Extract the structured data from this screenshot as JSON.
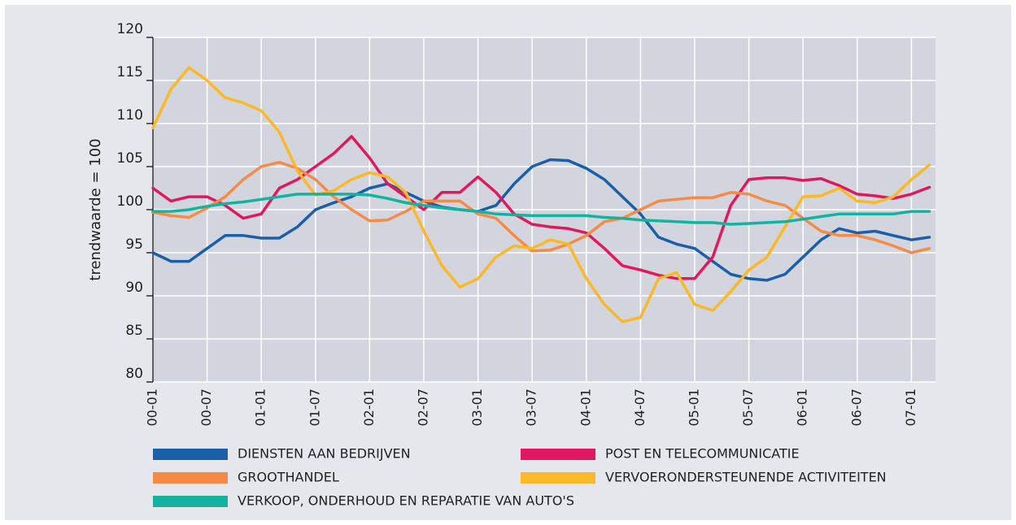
{
  "chart_data": {
    "type": "line",
    "ylabel": "trendwaarde = 100",
    "categories": [
      "00-01",
      null,
      null,
      "00-07",
      null,
      null,
      "01-01",
      null,
      null,
      "01-07",
      null,
      null,
      "02-01",
      null,
      null,
      "02-07",
      null,
      null,
      "03-01",
      null,
      null,
      "03-07",
      null,
      null,
      "04-01",
      null,
      null,
      "04-07",
      null,
      null,
      "05-01",
      null,
      null,
      "05-07",
      null,
      null,
      "06-01",
      null,
      null,
      "06-07",
      null,
      null,
      "07-01",
      null
    ],
    "ylim": [
      80,
      120
    ],
    "yticks": [
      80,
      85,
      90,
      95,
      100,
      105,
      110,
      115,
      120
    ],
    "grid": true,
    "series": [
      {
        "name": "DIENSTEN AAN BEDRIJVEN",
        "color": "#1a5fa8",
        "values": [
          95,
          94,
          94,
          95.5,
          97,
          97,
          96.7,
          96.7,
          98,
          100,
          100.8,
          101.5,
          102.5,
          103,
          102,
          101,
          100.3,
          100,
          99.8,
          100.5,
          103,
          105,
          105.8,
          105.7,
          104.8,
          103.5,
          101.5,
          99.5,
          96.8,
          96,
          95.5,
          94,
          92.5,
          92,
          91.8,
          92.5,
          94.5,
          96.5,
          97.8,
          97.3,
          97.5,
          97,
          96.5,
          96.8
        ]
      },
      {
        "name": "POST EN TELECOMMUNICATIE",
        "color": "#e0195e",
        "values": [
          102.5,
          101,
          101.5,
          101.5,
          100.5,
          99,
          99.5,
          102.5,
          103.5,
          105,
          106.5,
          108.5,
          106,
          103,
          101.5,
          100,
          102,
          102,
          103.8,
          102,
          99.5,
          98.3,
          98,
          97.8,
          97.3,
          95.5,
          93.5,
          93,
          92.4,
          92,
          92,
          94.5,
          100.5,
          103.5,
          103.7,
          103.7,
          103.4,
          103.6,
          102.8,
          101.8,
          101.6,
          101.3,
          101.8,
          102.6
        ]
      },
      {
        "name": "GROOTHANDEL",
        "color": "#f68b47",
        "values": [
          99.7,
          99.3,
          99.1,
          100.2,
          101.5,
          103.5,
          105,
          105.5,
          104.8,
          103.5,
          101.5,
          100,
          98.7,
          98.8,
          99.8,
          101,
          101,
          101,
          99.5,
          99,
          97,
          95.2,
          95.3,
          96,
          97,
          98.6,
          99,
          100,
          101,
          101.2,
          101.4,
          101.4,
          102,
          101.8,
          101,
          100.5,
          99,
          97.5,
          97,
          97,
          96.5,
          95.8,
          95,
          95.5
        ]
      },
      {
        "name": "VERVOERONDERSTEUNENDE ACTIVITEITEN",
        "color": "#fbb829",
        "values": [
          109.5,
          114,
          116.5,
          115,
          113,
          112.4,
          111.5,
          109,
          104.5,
          101.7,
          102.2,
          103.5,
          104.3,
          103.8,
          102,
          97.5,
          93.5,
          91,
          92,
          94.5,
          95.8,
          95.5,
          96.5,
          96,
          92,
          89,
          87,
          87.5,
          92,
          92.7,
          89,
          88.3,
          90.5,
          93,
          94.5,
          98,
          101.5,
          101.6,
          102.5,
          101,
          100.8,
          101.5,
          103.5,
          105.2
        ]
      },
      {
        "name": "VERKOOP, ONDERHOUD EN REPARATIE VAN AUTO'S",
        "color": "#13b3a0",
        "values": [
          99.8,
          99.8,
          100,
          100.4,
          100.7,
          100.9,
          101.2,
          101.5,
          101.8,
          101.8,
          101.8,
          101.8,
          101.7,
          101.3,
          100.8,
          100.5,
          100.2,
          100,
          99.8,
          99.5,
          99.4,
          99.3,
          99.3,
          99.3,
          99.3,
          99.1,
          99,
          98.8,
          98.7,
          98.6,
          98.5,
          98.5,
          98.3,
          98.4,
          98.5,
          98.6,
          98.9,
          99.2,
          99.5,
          99.5,
          99.5,
          99.5,
          99.8,
          99.8
        ]
      }
    ]
  }
}
